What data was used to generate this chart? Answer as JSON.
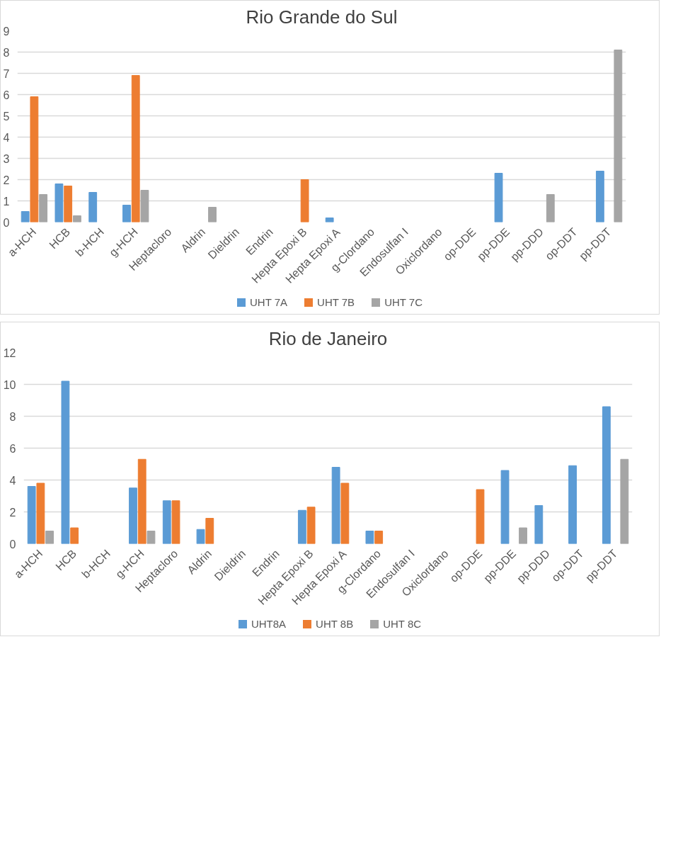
{
  "chart_data": [
    {
      "type": "bar",
      "title": "Rio Grande do Sul",
      "categories": [
        "a-HCH",
        "HCB",
        "b-HCH",
        "g-HCH",
        "Heptacloro",
        "Aldrin",
        "Dieldrin",
        "Endrin",
        "Hepta Epoxi B",
        "Hepta Epoxi A",
        "g-Clordano",
        "Endosulfan I",
        "Oxiclordano",
        "op-DDE",
        "pp-DDE",
        "pp-DDD",
        "op-DDT",
        "pp-DDT"
      ],
      "ylim": [
        0,
        9
      ],
      "yticks": [
        0,
        1,
        2,
        3,
        4,
        5,
        6,
        7,
        8,
        9
      ],
      "grid": "y",
      "legend": "bottom",
      "series": [
        {
          "name": "UHT 7A",
          "color": "#5b9bd5",
          "values": [
            0.5,
            1.8,
            1.4,
            0.8,
            null,
            null,
            null,
            null,
            null,
            0.2,
            null,
            null,
            null,
            null,
            2.3,
            null,
            null,
            2.4
          ]
        },
        {
          "name": "UHT 7B",
          "color": "#ed7d31",
          "values": [
            5.9,
            1.7,
            null,
            6.9,
            null,
            null,
            null,
            null,
            2.0,
            null,
            null,
            null,
            null,
            null,
            null,
            null,
            null,
            null
          ]
        },
        {
          "name": "UHT 7C",
          "color": "#a5a5a5",
          "values": [
            1.3,
            0.3,
            null,
            1.5,
            null,
            0.7,
            null,
            null,
            null,
            null,
            null,
            null,
            null,
            null,
            null,
            1.3,
            null,
            8.1
          ]
        }
      ]
    },
    {
      "type": "bar",
      "title": "Rio de Janeiro",
      "categories": [
        "a-HCH",
        "HCB",
        "b-HCH",
        "g-HCH",
        "Heptacloro",
        "Aldrin",
        "Dieldrin",
        "Endrin",
        "Hepta Epoxi B",
        "Hepta Epoxi A",
        "g-Clordano",
        "Endosulfan I",
        "Oxiclordano",
        "op-DDE",
        "pp-DDE",
        "pp-DDD",
        "op-DDT",
        "pp-DDT"
      ],
      "ylim": [
        0,
        12
      ],
      "yticks": [
        0,
        2,
        4,
        6,
        8,
        10,
        12
      ],
      "grid": "y",
      "legend": "bottom",
      "series": [
        {
          "name": "UHT8A",
          "color": "#5b9bd5",
          "values": [
            3.6,
            10.2,
            null,
            3.5,
            2.7,
            0.9,
            null,
            null,
            2.1,
            4.8,
            0.8,
            null,
            null,
            null,
            4.6,
            2.4,
            4.9,
            8.6
          ]
        },
        {
          "name": "UHT 8B",
          "color": "#ed7d31",
          "values": [
            3.8,
            1.0,
            null,
            5.3,
            2.7,
            1.6,
            null,
            null,
            2.3,
            3.8,
            0.8,
            null,
            null,
            3.4,
            null,
            null,
            null,
            null
          ]
        },
        {
          "name": "UHT 8C",
          "color": "#a5a5a5",
          "values": [
            0.8,
            null,
            null,
            0.8,
            null,
            null,
            null,
            null,
            null,
            null,
            null,
            null,
            null,
            null,
            1.0,
            null,
            null,
            5.3
          ]
        }
      ]
    }
  ]
}
